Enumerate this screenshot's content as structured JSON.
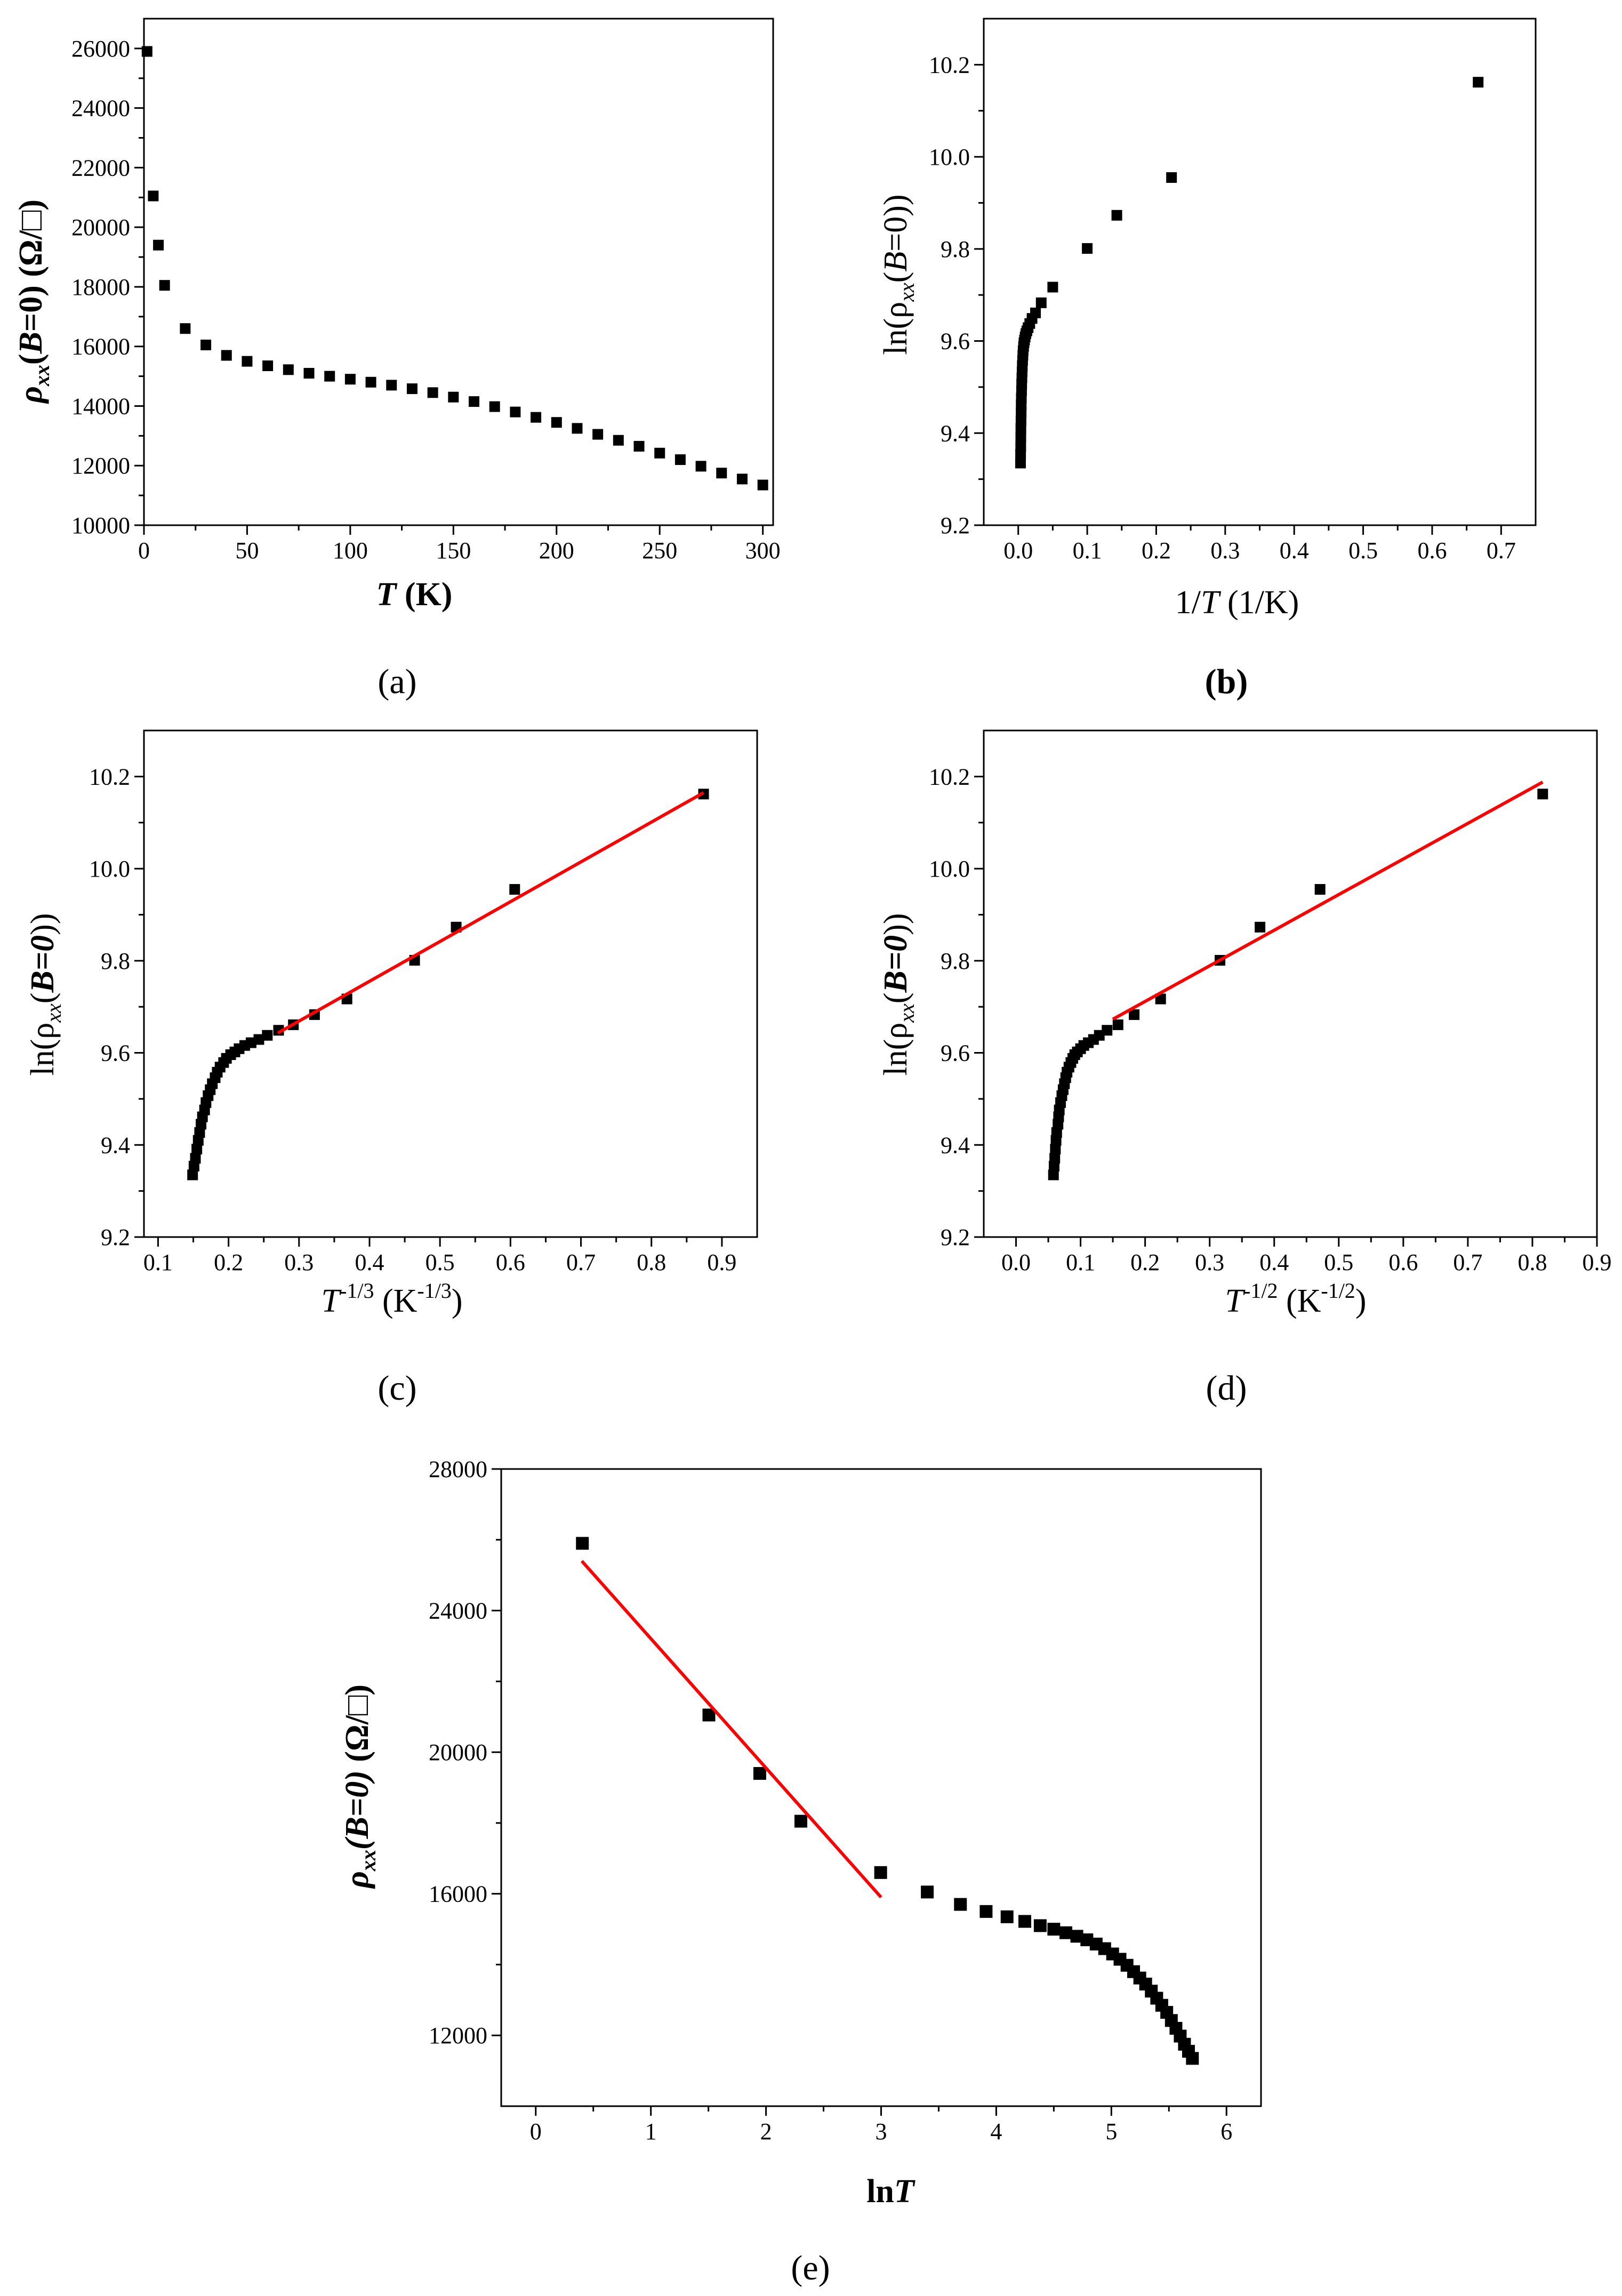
{
  "chart_data": [
    {
      "type": "scatter",
      "caption": "(a)",
      "xlabel": "T (K)",
      "ylabel": "ρxx(B=0) (Ω/□)",
      "xlim": [
        0,
        305
      ],
      "ylim": [
        10000,
        27000
      ],
      "xticks": [
        0,
        50,
        100,
        150,
        200,
        250,
        300
      ],
      "yticks": [
        10000,
        12000,
        14000,
        16000,
        18000,
        20000,
        22000,
        24000,
        26000
      ],
      "tick_labels_x": [
        "0",
        "50",
        "100",
        "150",
        "200",
        "250",
        "300"
      ],
      "tick_labels_y": [
        "10000",
        "12000",
        "14000",
        "16000",
        "18000",
        "20000",
        "22000",
        "24000",
        "26000"
      ],
      "series": [
        {
          "name": "data",
          "x": [
            1.5,
            4.5,
            7,
            10,
            20,
            30,
            40,
            50,
            60,
            70,
            80,
            90,
            100,
            110,
            120,
            130,
            140,
            150,
            160,
            170,
            180,
            190,
            200,
            210,
            220,
            230,
            240,
            250,
            260,
            270,
            280,
            290,
            300
          ],
          "y": [
            25900,
            21050,
            19400,
            18050,
            16600,
            16050,
            15700,
            15500,
            15350,
            15220,
            15100,
            15000,
            14900,
            14800,
            14700,
            14580,
            14450,
            14300,
            14150,
            13980,
            13800,
            13620,
            13450,
            13250,
            13050,
            12850,
            12650,
            12420,
            12200,
            11980,
            11750,
            11550,
            11350
          ]
        }
      ]
    },
    {
      "type": "scatter",
      "caption": "(b)",
      "xlabel": "1/T (1/K)",
      "ylabel": "ln(ρxx(B=0))",
      "xlim": [
        -0.05,
        0.75
      ],
      "ylim": [
        9.2,
        10.3
      ],
      "xticks": [
        0.0,
        0.1,
        0.2,
        0.3,
        0.4,
        0.5,
        0.6,
        0.7
      ],
      "yticks": [
        9.2,
        9.4,
        9.6,
        9.8,
        10.0,
        10.2
      ],
      "tick_labels_x": [
        "0.0",
        "0.1",
        "0.2",
        "0.3",
        "0.4",
        "0.5",
        "0.6",
        "0.7"
      ],
      "tick_labels_y": [
        "9.2",
        "9.4",
        "9.6",
        "9.8",
        "10.0",
        "10.2"
      ],
      "series": [
        {
          "name": "data",
          "x": [
            0.6667,
            0.2222,
            0.1429,
            0.1,
            0.05,
            0.0333,
            0.025,
            0.02,
            0.0167,
            0.0143,
            0.0125,
            0.0111,
            0.01,
            0.0091,
            0.0083,
            0.0077,
            0.0071,
            0.0067,
            0.0063,
            0.0059,
            0.0056,
            0.0053,
            0.005,
            0.0048,
            0.0045,
            0.0043,
            0.0042,
            0.004,
            0.0038,
            0.0037,
            0.0036,
            0.0034,
            0.0033
          ],
          "y": [
            10.162,
            9.955,
            9.873,
            9.801,
            9.717,
            9.683,
            9.661,
            9.649,
            9.638,
            9.629,
            9.622,
            9.616,
            9.609,
            9.602,
            9.596,
            9.588,
            9.579,
            9.569,
            9.558,
            9.546,
            9.533,
            9.52,
            9.507,
            9.492,
            9.476,
            9.461,
            9.445,
            9.427,
            9.41,
            9.391,
            9.371,
            9.354,
            9.335
          ]
        }
      ]
    },
    {
      "type": "scatter",
      "caption": "(c)",
      "xlabel": "T^-1/3 (K^-1/3)",
      "ylabel": "ln(ρxx(B=0))",
      "xlim": [
        0.08,
        0.95
      ],
      "ylim": [
        9.2,
        10.3
      ],
      "xticks": [
        0.1,
        0.2,
        0.3,
        0.4,
        0.5,
        0.6,
        0.7,
        0.8,
        0.9
      ],
      "yticks": [
        9.2,
        9.4,
        9.6,
        9.8,
        10.0,
        10.2
      ],
      "tick_labels_x": [
        "0.1",
        "0.2",
        "0.3",
        "0.4",
        "0.5",
        "0.6",
        "0.7",
        "0.8",
        "0.9"
      ],
      "tick_labels_y": [
        "9.2",
        "9.4",
        "9.6",
        "9.8",
        "10.0",
        "10.2"
      ],
      "series": [
        {
          "name": "data",
          "x": [
            0.874,
            0.606,
            0.523,
            0.464,
            0.368,
            0.322,
            0.292,
            0.271,
            0.255,
            0.243,
            0.232,
            0.223,
            0.215,
            0.209,
            0.203,
            0.197,
            0.193,
            0.188,
            0.184,
            0.181,
            0.177,
            0.174,
            0.171,
            0.168,
            0.166,
            0.163,
            0.161,
            0.159,
            0.157,
            0.155,
            0.153,
            0.151,
            0.149
          ],
          "y": [
            10.162,
            9.955,
            9.873,
            9.801,
            9.717,
            9.683,
            9.661,
            9.649,
            9.638,
            9.629,
            9.622,
            9.616,
            9.609,
            9.602,
            9.596,
            9.588,
            9.579,
            9.569,
            9.558,
            9.546,
            9.533,
            9.52,
            9.507,
            9.492,
            9.476,
            9.461,
            9.445,
            9.427,
            9.41,
            9.391,
            9.371,
            9.354,
            9.335
          ]
        },
        {
          "name": "fit",
          "line": true,
          "color": "#ff0000",
          "x": [
            0.27,
            0.874
          ],
          "y": [
            9.643,
            10.165
          ]
        }
      ]
    },
    {
      "type": "scatter",
      "caption": "(d)",
      "xlabel": "T^-1/2 (K^-1/2)",
      "ylabel": "ln(ρxx(B=0))",
      "xlim": [
        -0.05,
        0.9
      ],
      "ylim": [
        9.2,
        10.3
      ],
      "xticks": [
        0.0,
        0.1,
        0.2,
        0.3,
        0.4,
        0.5,
        0.6,
        0.7,
        0.8,
        0.9
      ],
      "yticks": [
        9.2,
        9.4,
        9.6,
        9.8,
        10.0,
        10.2
      ],
      "tick_labels_x": [
        "0.0",
        "0.1",
        "0.2",
        "0.3",
        "0.4",
        "0.5",
        "0.6",
        "0.7",
        "0.8",
        "0.9"
      ],
      "tick_labels_y": [
        "9.2",
        "9.4",
        "9.6",
        "9.8",
        "10.0",
        "10.2"
      ],
      "series": [
        {
          "name": "data",
          "x": [
            0.816,
            0.471,
            0.378,
            0.316,
            0.224,
            0.183,
            0.158,
            0.141,
            0.129,
            0.12,
            0.112,
            0.105,
            0.1,
            0.095,
            0.091,
            0.088,
            0.085,
            0.082,
            0.079,
            0.077,
            0.075,
            0.073,
            0.071,
            0.069,
            0.067,
            0.066,
            0.065,
            0.063,
            0.062,
            0.061,
            0.06,
            0.059,
            0.058
          ],
          "y": [
            10.162,
            9.955,
            9.873,
            9.801,
            9.717,
            9.683,
            9.661,
            9.649,
            9.638,
            9.629,
            9.622,
            9.616,
            9.609,
            9.602,
            9.596,
            9.588,
            9.579,
            9.569,
            9.558,
            9.546,
            9.533,
            9.52,
            9.507,
            9.492,
            9.476,
            9.461,
            9.445,
            9.427,
            9.41,
            9.391,
            9.371,
            9.354,
            9.335
          ]
        },
        {
          "name": "fit",
          "line": true,
          "color": "#ff0000",
          "x": [
            0.15,
            0.816
          ],
          "y": [
            9.673,
            10.188
          ]
        }
      ]
    },
    {
      "type": "scatter",
      "caption": "(e)",
      "xlabel": "lnT",
      "ylabel": "ρxx(B=0) (Ω/□)",
      "xlim": [
        -0.3,
        6.3
      ],
      "ylim": [
        10000,
        28000
      ],
      "xticks": [
        0,
        1,
        2,
        3,
        4,
        5,
        6
      ],
      "yticks": [
        12000,
        16000,
        20000,
        24000,
        28000
      ],
      "tick_labels_x": [
        "0",
        "1",
        "2",
        "3",
        "4",
        "5",
        "6"
      ],
      "tick_labels_y": [
        "12000",
        "16000",
        "20000",
        "24000",
        "28000"
      ],
      "series": [
        {
          "name": "data",
          "x": [
            0.405,
            1.504,
            1.946,
            2.303,
            2.996,
            3.401,
            3.689,
            3.912,
            4.094,
            4.248,
            4.382,
            4.5,
            4.605,
            4.7,
            4.787,
            4.868,
            4.942,
            5.011,
            5.075,
            5.136,
            5.193,
            5.247,
            5.298,
            5.347,
            5.394,
            5.438,
            5.481,
            5.521,
            5.561,
            5.598,
            5.635,
            5.67,
            5.704
          ],
          "y": [
            25900,
            21050,
            19400,
            18050,
            16600,
            16050,
            15700,
            15500,
            15350,
            15220,
            15100,
            15000,
            14900,
            14800,
            14700,
            14580,
            14450,
            14300,
            14150,
            13980,
            13800,
            13620,
            13450,
            13250,
            13050,
            12850,
            12650,
            12420,
            12200,
            11980,
            11750,
            11550,
            11350
          ]
        },
        {
          "name": "fit",
          "line": true,
          "color": "#ff0000",
          "x": [
            0.4,
            3.0
          ],
          "y": [
            25400,
            15900
          ]
        }
      ]
    }
  ],
  "labels": {
    "a": {
      "ylabel_rho": "ρ",
      "ylabel_xx": "xx",
      "ylabel_B": "B",
      "ylabel_eq": "=0) (Ω/□)",
      "ylabel_open": "(",
      "xlabel_T": "T",
      "xlabel_unit": " (K)"
    },
    "b": {
      "ylabel_ln": "ln(ρ",
      "ylabel_xx": "xx",
      "ylabel_open": "(",
      "ylabel_B": "B",
      "ylabel_rest": "=0))",
      "xlabel_pre": "1/",
      "xlabel_T": "T",
      "xlabel_unit": " (1/K)"
    },
    "c": {
      "ylabel_ln": "ln(ρ",
      "ylabel_xx": "xx",
      "ylabel_open": "(",
      "ylabel_B": "B=0",
      "ylabel_rest": "))",
      "xlabel_T": "T",
      "xlabel_exp": "-1/3",
      "xlabel_unit": " (K",
      "xlabel_uexp": "-1/3",
      "xlabel_close": ")"
    },
    "d": {
      "ylabel_ln": "ln(ρ",
      "ylabel_xx": "xx",
      "ylabel_open": "(",
      "ylabel_B": "B=0",
      "ylabel_rest": "))",
      "xlabel_T": "T",
      "xlabel_exp": "-1/2",
      "xlabel_unit": " (K",
      "xlabel_uexp": "-1/2",
      "xlabel_close": ")"
    },
    "e": {
      "ylabel_rho": "ρ",
      "ylabel_xx": "xx",
      "ylabel_B": "(B=0)",
      "ylabel_unit": " (Ω/□)",
      "xlabel_ln": "ln",
      "xlabel_T": "T"
    }
  }
}
